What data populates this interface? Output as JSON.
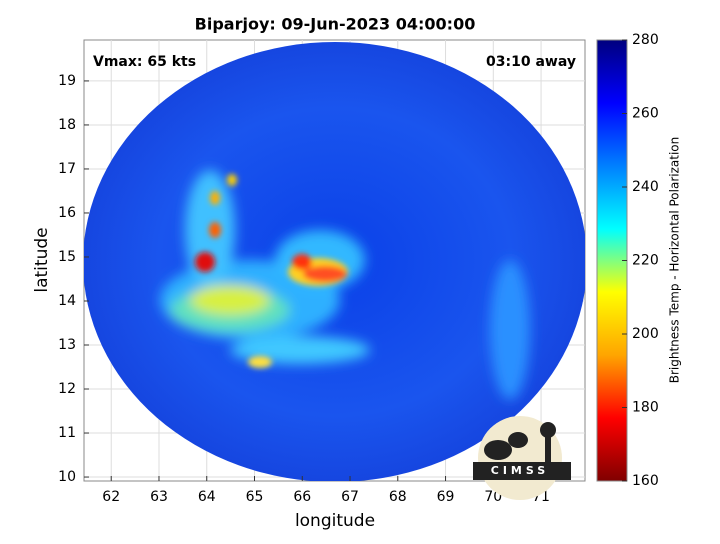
{
  "chart_data": {
    "type": "image",
    "title": "Biparjoy: 09-Jun-2023 04:00:00",
    "annotations": [
      "Vmax: 65 kts",
      "03:10 away"
    ],
    "x_label": "longitude",
    "y_label": "latitude",
    "xlim": [
      61.43,
      71.92
    ],
    "xticks": [
      62,
      63,
      64,
      65,
      66,
      67,
      68,
      69,
      70,
      71
    ],
    "ylim": [
      9.91,
      19.93
    ],
    "yticks": [
      10,
      11,
      12,
      13,
      14,
      15,
      16,
      17,
      18,
      19
    ],
    "grid": true,
    "colorbar": {
      "label": "Brightness Temp - Horizontal Polarization",
      "lim": [
        160,
        280
      ],
      "ticks": [
        160,
        180,
        200,
        220,
        240,
        260,
        280
      ],
      "colors": [
        "#800000",
        "#ff0000",
        "#ffa500",
        "#ffff00",
        "#00ffff",
        "#0080ff",
        "#0000ff",
        "#00007f"
      ]
    },
    "logo_text": "CIMSS"
  }
}
